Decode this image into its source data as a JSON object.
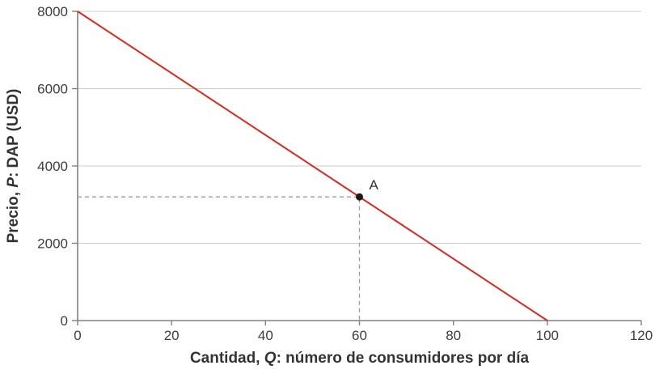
{
  "figure": {
    "description": "Demand curve chart"
  },
  "chart_data": {
    "type": "line",
    "title": "",
    "xlabel": "Cantidad, Q: número de consumidores por día",
    "ylabel": "Precio, P: DAP (USD)",
    "xlabel_parts": [
      {
        "text": "Cantidad, ",
        "italic": false
      },
      {
        "text": "Q",
        "italic": true
      },
      {
        "text": ": número de consumidores por día",
        "italic": false
      }
    ],
    "ylabel_parts": [
      {
        "text": "Precio, ",
        "italic": false
      },
      {
        "text": "P",
        "italic": true
      },
      {
        "text": ": DAP (USD)",
        "italic": false
      }
    ],
    "xlim": [
      0,
      120
    ],
    "ylim": [
      0,
      8000
    ],
    "xticks": [
      0,
      20,
      40,
      60,
      80,
      100,
      120
    ],
    "yticks": [
      0,
      2000,
      4000,
      6000,
      8000
    ],
    "grid": "horizontal",
    "legend": "none",
    "series": [
      {
        "name": "demand-curve",
        "color": "#e0261a",
        "width": 2,
        "points": [
          [
            0,
            8000
          ],
          [
            100,
            0
          ]
        ]
      }
    ],
    "annotations": [
      {
        "label": "A",
        "x": 60,
        "y": 3200,
        "dashed_guides": true
      }
    ],
    "colors": {
      "axis": "#808080",
      "grid": "#cccccc",
      "dash": "#999999",
      "point": "#1a1a1a",
      "tick_text": "#3d3d3d",
      "title_text": "#333333",
      "background": "#ffffff"
    }
  }
}
